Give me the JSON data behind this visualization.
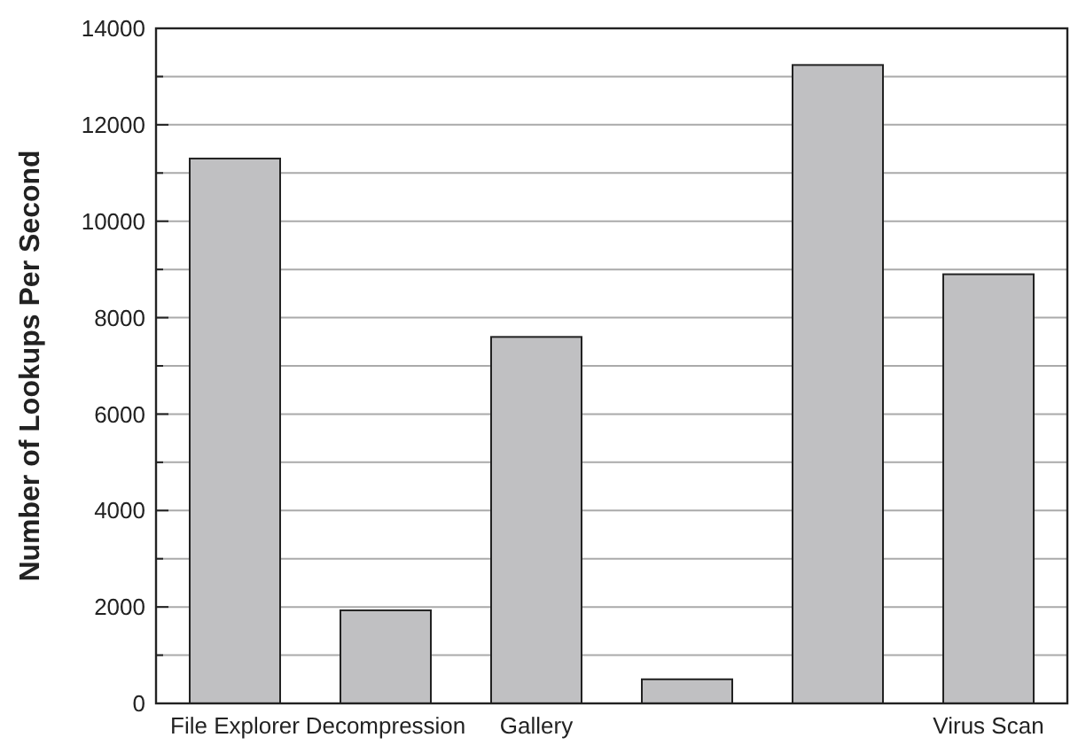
{
  "chart_data": {
    "type": "bar",
    "ylabel": "Number of Lookups Per Second",
    "categories": [
      "File Explorer",
      "Decompression",
      "Gallery",
      null,
      null,
      "Virus Scan"
    ],
    "values": [
      11300,
      1930,
      7600,
      500,
      13240,
      8900
    ],
    "color": "#c0c0c2",
    "ylim": [
      0,
      14000
    ],
    "yticks": [
      0,
      {
        "value": 1000,
        "label": null
      },
      2000,
      {
        "value": 3000,
        "label": null
      },
      4000,
      {
        "value": 5000,
        "label": null
      },
      6000,
      {
        "value": 7000,
        "label": null
      },
      8000,
      {
        "value": 9000,
        "label": null
      },
      10000,
      {
        "value": 11000,
        "label": null
      },
      12000,
      {
        "value": 13000,
        "label": null
      },
      14000
    ],
    "grid": "y"
  }
}
